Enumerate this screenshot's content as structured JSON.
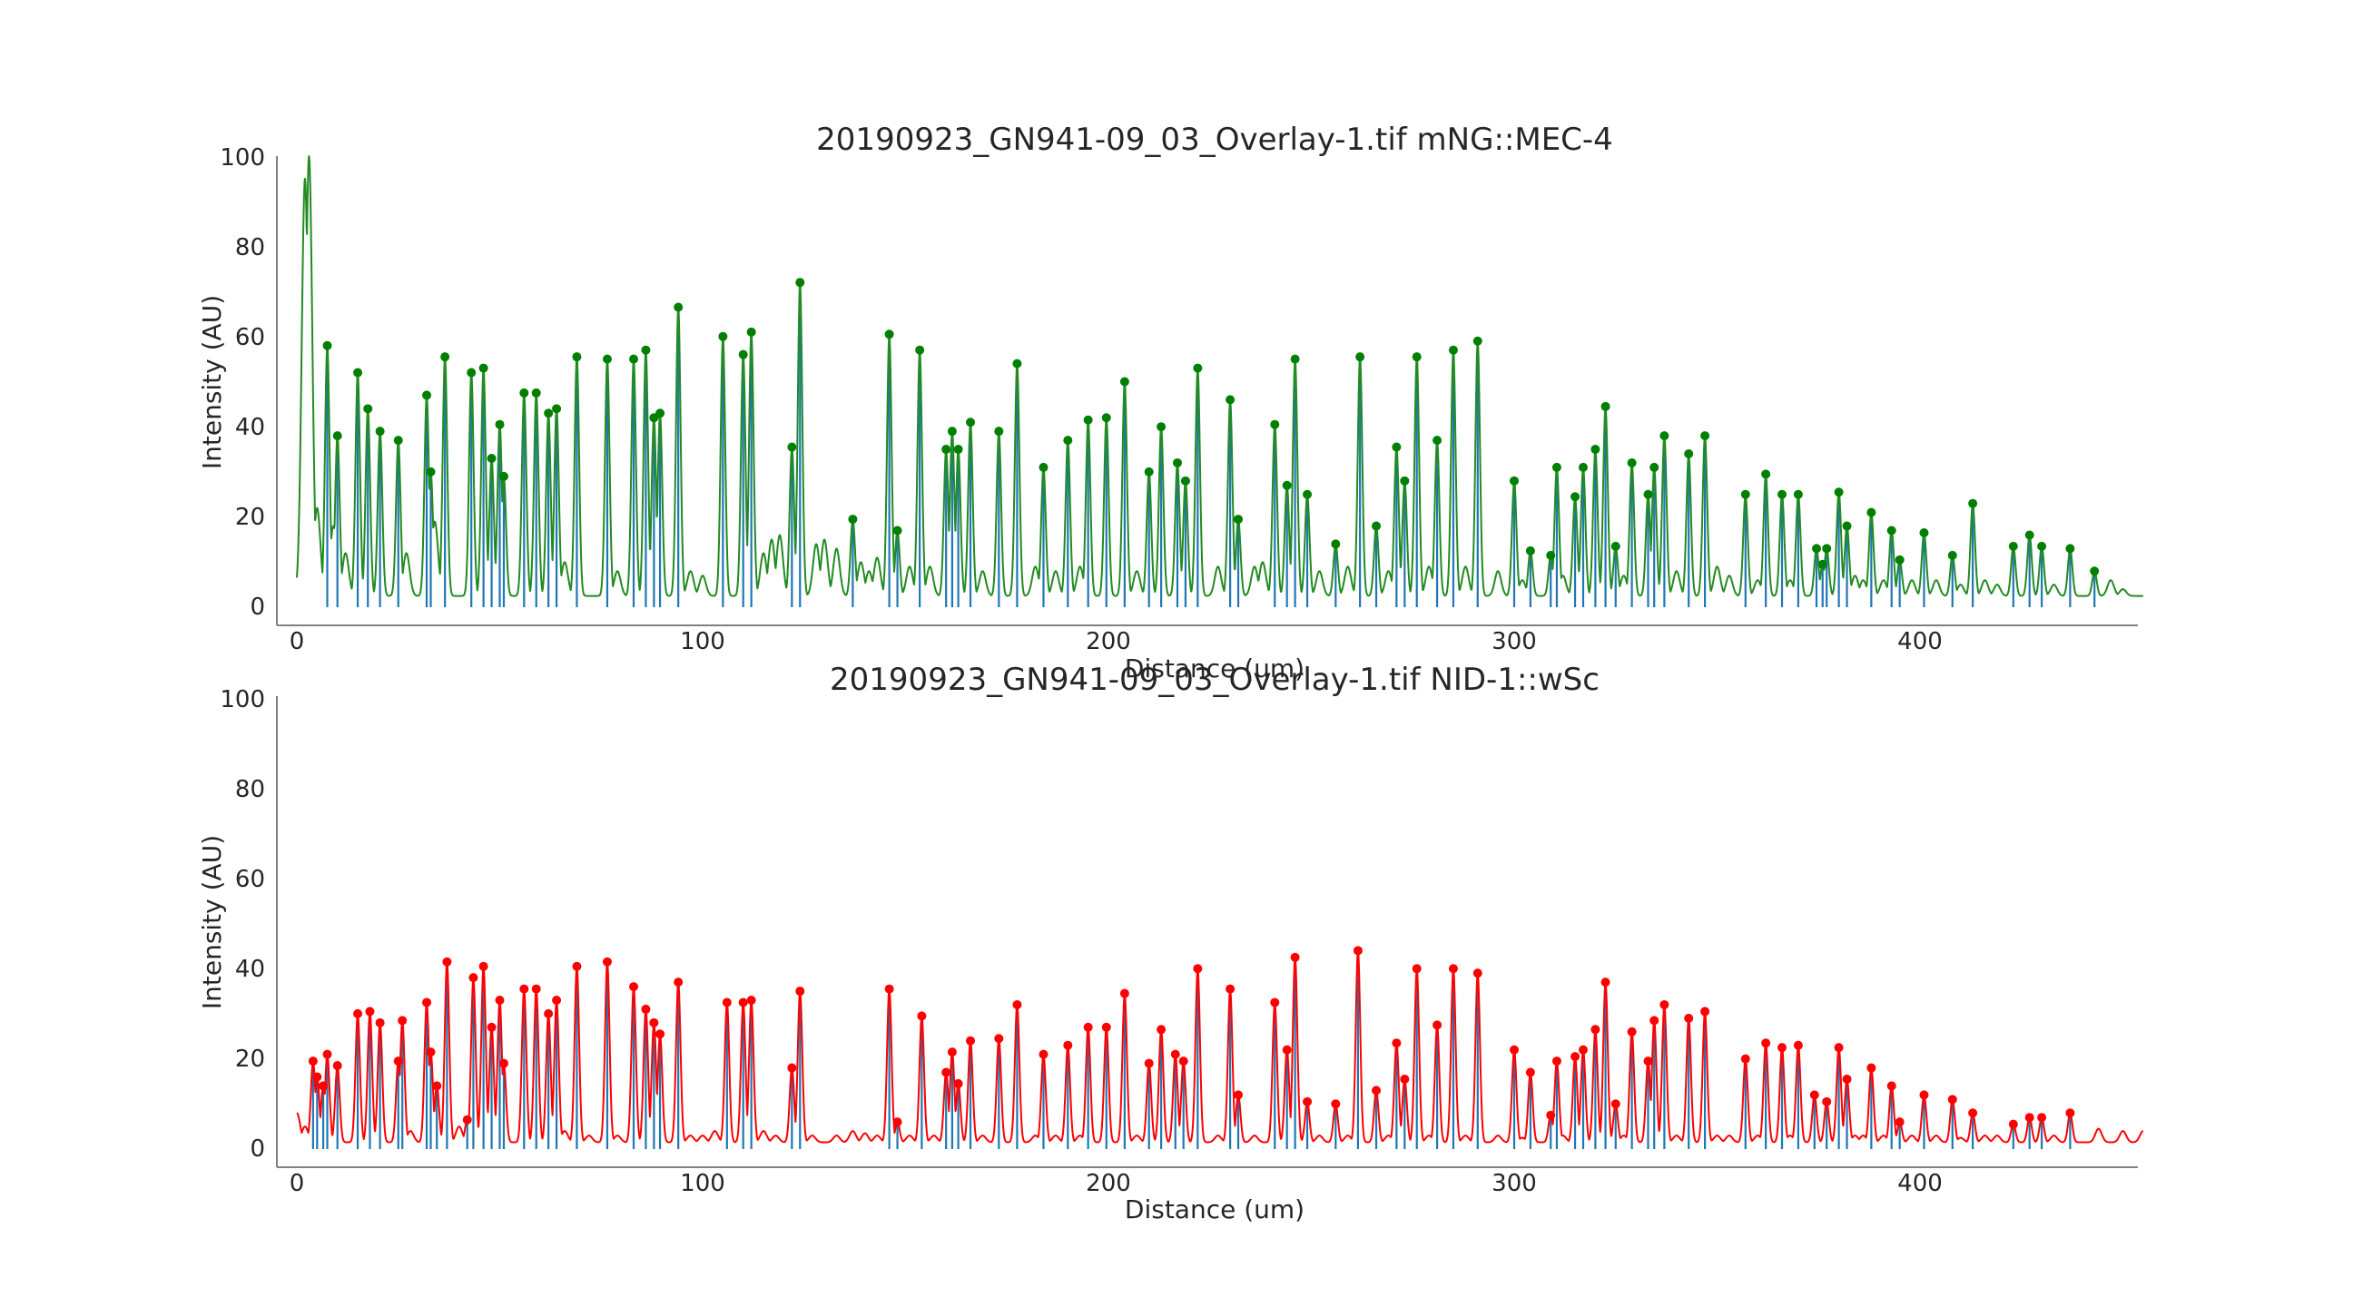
{
  "chart_data": [
    {
      "type": "line",
      "title": "20190923_GN941-09_03_Overlay-1.tif mNG::MEC-4",
      "xlabel": "Distance (um)",
      "ylabel": "Intensity (AU)",
      "xlim": [
        0,
        455
      ],
      "ylim": [
        0,
        100
      ],
      "xticks": [
        "0",
        "100",
        "200",
        "300",
        "400"
      ],
      "yticks": [
        "0",
        "20",
        "40",
        "60",
        "80",
        "100"
      ],
      "grid": false,
      "line_color": "#228B22",
      "marker_color": "#008000",
      "stem_color": "#1f77b4",
      "baseline": 2.5,
      "peaks": [
        [
          7.5,
          58
        ],
        [
          10,
          38
        ],
        [
          15,
          52
        ],
        [
          17.5,
          44
        ],
        [
          20.5,
          39
        ],
        [
          25,
          37
        ],
        [
          32,
          47
        ],
        [
          33,
          30
        ],
        [
          36.5,
          55.5
        ],
        [
          43,
          52
        ],
        [
          46,
          53
        ],
        [
          48,
          33
        ],
        [
          50,
          40.5
        ],
        [
          51,
          29
        ],
        [
          56,
          47.5
        ],
        [
          59,
          47.5
        ],
        [
          62,
          43
        ],
        [
          64,
          44
        ],
        [
          69,
          55.5
        ],
        [
          76.5,
          55
        ],
        [
          83,
          55
        ],
        [
          86,
          57
        ],
        [
          88,
          42
        ],
        [
          89.5,
          43
        ],
        [
          94,
          66.5
        ],
        [
          105,
          60
        ],
        [
          110,
          56
        ],
        [
          112,
          61
        ],
        [
          122,
          35.5
        ],
        [
          124,
          72
        ],
        [
          137,
          19.5
        ],
        [
          146,
          60.5
        ],
        [
          148,
          17
        ],
        [
          153.5,
          57
        ],
        [
          160,
          35
        ],
        [
          161.5,
          39
        ],
        [
          163,
          35
        ],
        [
          166,
          41
        ],
        [
          173,
          39
        ],
        [
          177.5,
          54
        ],
        [
          184,
          31
        ],
        [
          190,
          37
        ],
        [
          195,
          41.5
        ],
        [
          199.5,
          42
        ],
        [
          204,
          50
        ],
        [
          210,
          30
        ],
        [
          213,
          40
        ],
        [
          217,
          32
        ],
        [
          219,
          28
        ],
        [
          222,
          53
        ],
        [
          230,
          46
        ],
        [
          232,
          19.5
        ],
        [
          241,
          40.5
        ],
        [
          244,
          27
        ],
        [
          246,
          55
        ],
        [
          249,
          25
        ],
        [
          256,
          14
        ],
        [
          262,
          55.5
        ],
        [
          266,
          18
        ],
        [
          271,
          35.5
        ],
        [
          273,
          28
        ],
        [
          276,
          55.5
        ],
        [
          281,
          37
        ],
        [
          285,
          57
        ],
        [
          291,
          59
        ],
        [
          300,
          28
        ],
        [
          304,
          12.5
        ],
        [
          309,
          11.5
        ],
        [
          310.5,
          31
        ],
        [
          315,
          24.5
        ],
        [
          317,
          31
        ],
        [
          320,
          35
        ],
        [
          322.5,
          44.5
        ],
        [
          325,
          13.5
        ],
        [
          329,
          32
        ],
        [
          333,
          25
        ],
        [
          334.5,
          31
        ],
        [
          337,
          38
        ],
        [
          343,
          34
        ],
        [
          347,
          38
        ],
        [
          357,
          25
        ],
        [
          362,
          29.5
        ],
        [
          366,
          25
        ],
        [
          370,
          25
        ],
        [
          374.5,
          13
        ],
        [
          376,
          9.5
        ],
        [
          377,
          13
        ],
        [
          380,
          25.5
        ],
        [
          382,
          18
        ],
        [
          388,
          21
        ],
        [
          393,
          17
        ],
        [
          395,
          10.5
        ],
        [
          401,
          16.5
        ],
        [
          408,
          11.5
        ],
        [
          413,
          23
        ],
        [
          423,
          13.5
        ],
        [
          427,
          16
        ],
        [
          430,
          13.5
        ],
        [
          437,
          13
        ],
        [
          443,
          8
        ]
      ],
      "minor_bumps": [
        [
          2,
          95
        ],
        [
          3,
          100
        ],
        [
          5,
          22
        ],
        [
          9,
          18
        ],
        [
          12,
          12
        ],
        [
          27,
          12
        ],
        [
          34,
          19
        ],
        [
          66,
          10
        ],
        [
          79,
          8
        ],
        [
          97,
          8
        ],
        [
          100,
          7
        ],
        [
          115,
          12
        ],
        [
          117,
          15
        ],
        [
          119,
          16
        ],
        [
          128,
          14
        ],
        [
          130,
          15
        ],
        [
          133,
          13
        ],
        [
          139,
          10
        ],
        [
          141,
          8
        ],
        [
          143,
          11
        ],
        [
          151,
          9
        ],
        [
          156,
          9
        ],
        [
          169,
          8
        ],
        [
          182,
          9
        ],
        [
          187,
          8
        ],
        [
          193,
          9
        ],
        [
          207,
          8
        ],
        [
          227,
          9
        ],
        [
          236,
          9
        ],
        [
          238,
          10
        ],
        [
          252,
          8
        ],
        [
          259,
          9
        ],
        [
          269,
          8
        ],
        [
          279,
          9
        ],
        [
          288,
          9
        ],
        [
          296,
          8
        ],
        [
          302,
          6
        ],
        [
          312,
          7
        ],
        [
          327,
          7
        ],
        [
          340,
          8
        ],
        [
          350,
          9
        ],
        [
          353,
          7
        ],
        [
          360,
          6
        ],
        [
          368,
          6
        ],
        [
          384,
          7
        ],
        [
          386,
          6
        ],
        [
          391,
          6
        ],
        [
          398,
          6
        ],
        [
          404,
          6
        ],
        [
          410,
          5
        ],
        [
          416,
          6
        ],
        [
          419,
          5
        ],
        [
          433,
          5
        ],
        [
          447,
          6
        ],
        [
          450,
          4
        ]
      ]
    },
    {
      "type": "line",
      "title": "20190923_GN941-09_03_Overlay-1.tif NID-1::wSc",
      "xlabel": "Distance (um)",
      "ylabel": "Intensity (AU)",
      "xlim": [
        0,
        455
      ],
      "ylim": [
        0,
        100
      ],
      "xticks": [
        "0",
        "100",
        "200",
        "300",
        "400"
      ],
      "yticks": [
        "0",
        "20",
        "40",
        "60",
        "80",
        "100"
      ],
      "grid": false,
      "line_color": "#ff0000",
      "marker_color": "#ff0000",
      "stem_color": "#1f77b4",
      "baseline": 1.5,
      "peaks": [
        [
          4,
          19.5
        ],
        [
          5,
          16
        ],
        [
          6.5,
          14
        ],
        [
          7.5,
          21
        ],
        [
          10,
          18.5
        ],
        [
          15,
          30
        ],
        [
          18,
          30.5
        ],
        [
          20.5,
          28
        ],
        [
          25,
          19.5
        ],
        [
          26,
          28.5
        ],
        [
          32,
          32.5
        ],
        [
          33,
          21.5
        ],
        [
          34.5,
          14
        ],
        [
          37,
          41.5
        ],
        [
          42,
          6.5
        ],
        [
          43.5,
          38
        ],
        [
          46,
          40.5
        ],
        [
          48,
          27
        ],
        [
          50,
          33
        ],
        [
          51,
          19
        ],
        [
          56,
          35.5
        ],
        [
          59,
          35.5
        ],
        [
          62,
          30
        ],
        [
          64,
          33
        ],
        [
          69,
          40.5
        ],
        [
          76.5,
          41.5
        ],
        [
          83,
          36
        ],
        [
          86,
          31
        ],
        [
          88,
          28
        ],
        [
          89.5,
          25.5
        ],
        [
          94,
          37
        ],
        [
          106,
          32.5
        ],
        [
          110,
          32.5
        ],
        [
          112,
          33
        ],
        [
          122,
          18
        ],
        [
          124,
          35
        ],
        [
          146,
          35.5
        ],
        [
          148,
          6
        ],
        [
          154,
          29.5
        ],
        [
          160,
          17
        ],
        [
          161.5,
          21.5
        ],
        [
          163,
          14.5
        ],
        [
          166,
          24
        ],
        [
          173,
          24.5
        ],
        [
          177.5,
          32
        ],
        [
          184,
          21
        ],
        [
          190,
          23
        ],
        [
          195,
          27
        ],
        [
          199.5,
          27
        ],
        [
          204,
          34.5
        ],
        [
          210,
          19
        ],
        [
          213,
          26.5
        ],
        [
          216.5,
          21
        ],
        [
          218.5,
          19.5
        ],
        [
          222,
          40
        ],
        [
          230,
          35.5
        ],
        [
          232,
          12
        ],
        [
          241,
          32.5
        ],
        [
          244,
          22
        ],
        [
          246,
          42.5
        ],
        [
          249,
          10.5
        ],
        [
          256,
          10
        ],
        [
          261.5,
          44
        ],
        [
          266,
          13
        ],
        [
          271,
          23.5
        ],
        [
          273,
          15.5
        ],
        [
          276,
          40
        ],
        [
          281,
          27.5
        ],
        [
          285,
          40
        ],
        [
          291,
          39
        ],
        [
          300,
          22
        ],
        [
          304,
          17
        ],
        [
          309,
          7.5
        ],
        [
          310.5,
          19.5
        ],
        [
          315,
          20.5
        ],
        [
          317,
          22
        ],
        [
          320,
          26.5
        ],
        [
          322.5,
          37
        ],
        [
          325,
          10
        ],
        [
          329,
          26
        ],
        [
          333,
          19.5
        ],
        [
          334.5,
          28.5
        ],
        [
          337,
          32
        ],
        [
          343,
          29
        ],
        [
          347,
          30.5
        ],
        [
          357,
          20
        ],
        [
          362,
          23.5
        ],
        [
          366,
          22.5
        ],
        [
          370,
          23
        ],
        [
          374,
          12
        ],
        [
          377,
          10.5
        ],
        [
          380,
          22.5
        ],
        [
          382,
          15.5
        ],
        [
          388,
          18
        ],
        [
          393,
          14
        ],
        [
          395,
          6
        ],
        [
          401,
          12
        ],
        [
          408,
          11
        ],
        [
          413,
          8
        ],
        [
          423,
          5.5
        ],
        [
          427,
          7
        ],
        [
          430,
          7
        ],
        [
          437,
          8
        ]
      ],
      "minor_bumps": [
        [
          0,
          8
        ],
        [
          2,
          5
        ],
        [
          28,
          4
        ],
        [
          40,
          5
        ],
        [
          66,
          4
        ],
        [
          72,
          3
        ],
        [
          79,
          3
        ],
        [
          97,
          3
        ],
        [
          100,
          3
        ],
        [
          103,
          4
        ],
        [
          115,
          4
        ],
        [
          118,
          3
        ],
        [
          127,
          3
        ],
        [
          133,
          3
        ],
        [
          137,
          4
        ],
        [
          140,
          3.5
        ],
        [
          143,
          3
        ],
        [
          151,
          3
        ],
        [
          157,
          3
        ],
        [
          169,
          3
        ],
        [
          182,
          3
        ],
        [
          187,
          3
        ],
        [
          193,
          3
        ],
        [
          207,
          3
        ],
        [
          227,
          3
        ],
        [
          236,
          3
        ],
        [
          252,
          3
        ],
        [
          259,
          3
        ],
        [
          269,
          3
        ],
        [
          279,
          3
        ],
        [
          288,
          3
        ],
        [
          296,
          3
        ],
        [
          302,
          2.5
        ],
        [
          312,
          3
        ],
        [
          327,
          3
        ],
        [
          340,
          3
        ],
        [
          350,
          3
        ],
        [
          353,
          3
        ],
        [
          360,
          3
        ],
        [
          368,
          3
        ],
        [
          384,
          3
        ],
        [
          386,
          3
        ],
        [
          391,
          3
        ],
        [
          398,
          3
        ],
        [
          404,
          3
        ],
        [
          410,
          2.5
        ],
        [
          416,
          3
        ],
        [
          419,
          3
        ],
        [
          433,
          3
        ],
        [
          444,
          4.5
        ],
        [
          450,
          4
        ],
        [
          455,
          4
        ]
      ]
    }
  ]
}
